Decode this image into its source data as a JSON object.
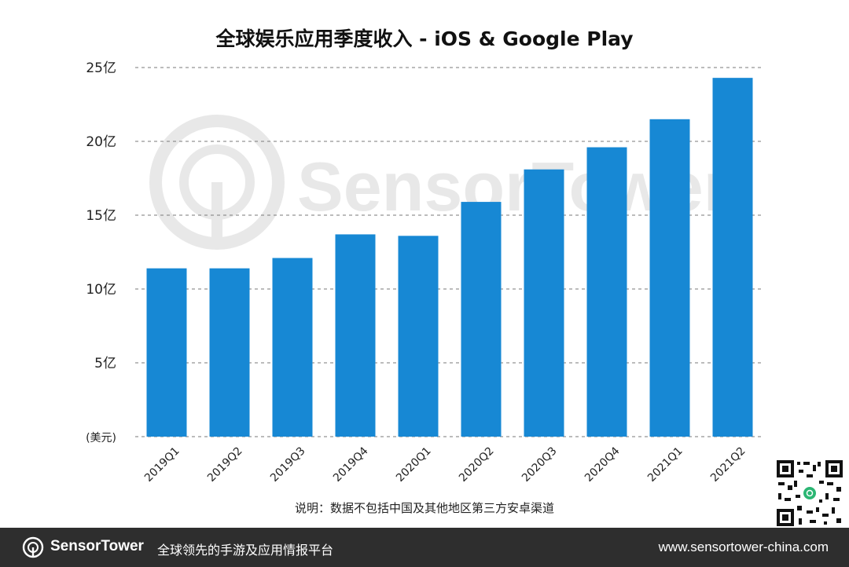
{
  "title": "全球娱乐应用季度收入 - iOS & Google Play",
  "note": "说明：数据不包括中国及其他地区第三方安卓渠道",
  "watermark": "SensorTower",
  "footer": {
    "brand": "SensorTower",
    "tagline": "全球领先的手游及应用情报平台",
    "url": "www.sensortower-china.com"
  },
  "colors": {
    "bar": "#1788d4",
    "grid": "#7a7a7a",
    "footer_bg": "#2e2e2e"
  },
  "chart_data": {
    "type": "bar",
    "title": "全球娱乐应用季度收入 - iOS & Google Play",
    "categories": [
      "2019Q1",
      "2019Q2",
      "2019Q3",
      "2019Q4",
      "2020Q1",
      "2020Q2",
      "2020Q3",
      "2020Q4",
      "2021Q1",
      "2021Q2"
    ],
    "values": [
      11.4,
      11.4,
      12.1,
      13.7,
      13.6,
      15.9,
      18.1,
      19.6,
      21.5,
      24.3
    ],
    "ylim": [
      0,
      25
    ],
    "yticks": [
      {
        "value": 0,
        "label": "(美元)"
      },
      {
        "value": 5,
        "label": "5亿"
      },
      {
        "value": 10,
        "label": "10亿"
      },
      {
        "value": 15,
        "label": "15亿"
      },
      {
        "value": 20,
        "label": "20亿"
      },
      {
        "value": 25,
        "label": "25亿"
      }
    ],
    "ylabel": "",
    "xlabel": "",
    "grid": true,
    "grid_style": "dashed"
  }
}
